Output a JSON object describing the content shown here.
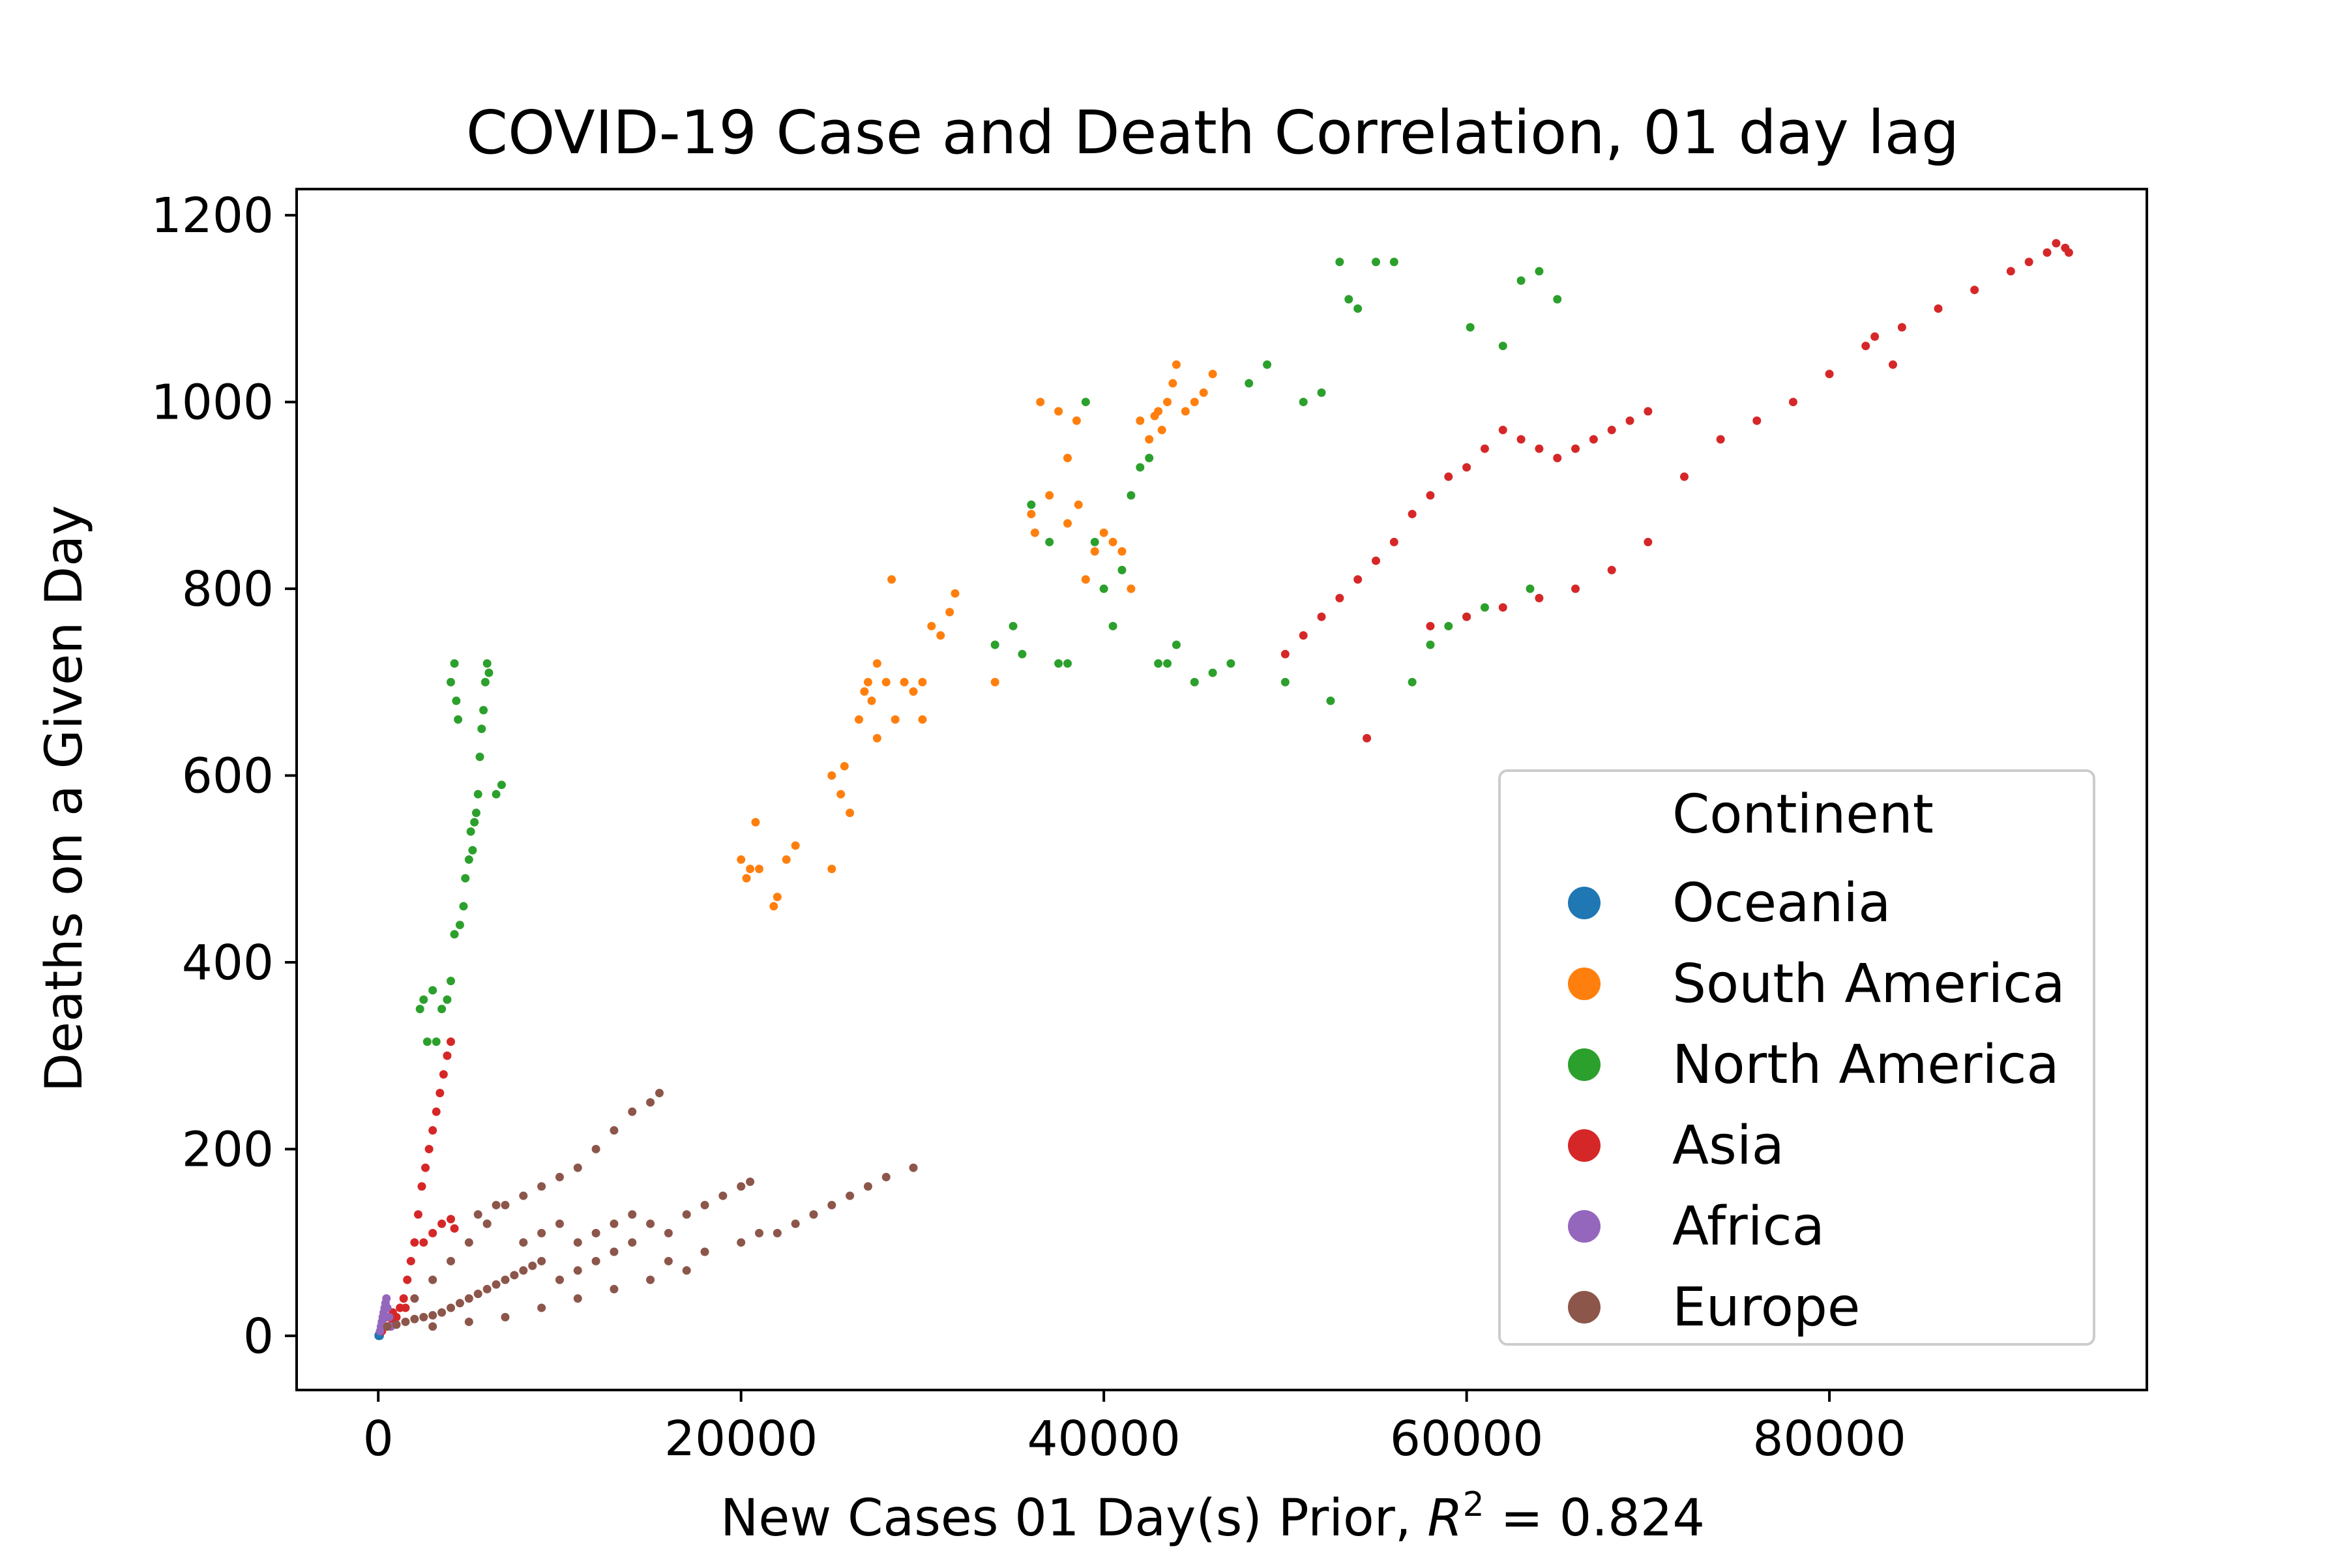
{
  "chart_data": {
    "type": "scatter",
    "title": "COVID-19 Case and Death Correlation, 01 day lag",
    "xlabel_prefix": "New Cases 01 Day(s) Prior, ",
    "xlabel_r": "R",
    "xlabel_exp": "2",
    "xlabel_suffix": " = 0.824",
    "ylabel": "Deaths on a Given Day",
    "xlim": [
      -4500,
      97500
    ],
    "ylim": [
      -58,
      1228
    ],
    "x_ticks": [
      0,
      20000,
      40000,
      60000,
      80000
    ],
    "x_tick_labels": [
      "0",
      "20000",
      "40000",
      "60000",
      "80000"
    ],
    "y_ticks": [
      0,
      200,
      400,
      600,
      800,
      1000,
      1200
    ],
    "y_tick_labels": [
      "0",
      "200",
      "400",
      "600",
      "800",
      "1000",
      "1200"
    ],
    "legend": {
      "title": "Continent",
      "position": "lower-right"
    },
    "series": [
      {
        "name": "Oceania",
        "color": "#1f77b4",
        "points": [
          [
            20,
            0
          ],
          [
            30,
            1
          ],
          [
            40,
            0
          ],
          [
            60,
            1
          ],
          [
            80,
            0
          ]
        ]
      },
      {
        "name": "South America",
        "color": "#ff7f0e",
        "points": [
          [
            20000,
            510
          ],
          [
            20500,
            500
          ],
          [
            20300,
            490
          ],
          [
            21000,
            500
          ],
          [
            20800,
            550
          ],
          [
            22000,
            470
          ],
          [
            21800,
            460
          ],
          [
            22500,
            510
          ],
          [
            23000,
            525
          ],
          [
            25000,
            500
          ],
          [
            25000,
            600
          ],
          [
            25500,
            580
          ],
          [
            25700,
            610
          ],
          [
            26000,
            560
          ],
          [
            26500,
            660
          ],
          [
            26800,
            690
          ],
          [
            27000,
            700
          ],
          [
            27200,
            680
          ],
          [
            27500,
            720
          ],
          [
            27500,
            640
          ],
          [
            28000,
            700
          ],
          [
            28300,
            810
          ],
          [
            28500,
            660
          ],
          [
            29000,
            700
          ],
          [
            29500,
            690
          ],
          [
            30000,
            700
          ],
          [
            30000,
            660
          ],
          [
            30500,
            760
          ],
          [
            31000,
            750
          ],
          [
            31500,
            775
          ],
          [
            31800,
            795
          ],
          [
            34000,
            700
          ],
          [
            36000,
            880
          ],
          [
            36200,
            860
          ],
          [
            36500,
            1000
          ],
          [
            37000,
            900
          ],
          [
            37500,
            990
          ],
          [
            38000,
            940
          ],
          [
            38000,
            870
          ],
          [
            38500,
            980
          ],
          [
            38600,
            890
          ],
          [
            39000,
            810
          ],
          [
            39500,
            840
          ],
          [
            40000,
            860
          ],
          [
            40500,
            850
          ],
          [
            41000,
            840
          ],
          [
            41500,
            800
          ],
          [
            42000,
            980
          ],
          [
            42500,
            960
          ],
          [
            43000,
            990
          ],
          [
            43500,
            1000
          ],
          [
            43800,
            1020
          ],
          [
            44000,
            1040
          ],
          [
            44500,
            990
          ],
          [
            45000,
            1000
          ],
          [
            45500,
            1010
          ],
          [
            46000,
            1030
          ],
          [
            43200,
            970
          ],
          [
            42800,
            985
          ]
        ]
      },
      {
        "name": "North America",
        "color": "#2ca02c",
        "points": [
          [
            2300,
            350
          ],
          [
            2500,
            360
          ],
          [
            2700,
            315
          ],
          [
            3000,
            370
          ],
          [
            3200,
            315
          ],
          [
            3500,
            350
          ],
          [
            3800,
            360
          ],
          [
            4000,
            380
          ],
          [
            4200,
            430
          ],
          [
            4500,
            440
          ],
          [
            4700,
            460
          ],
          [
            4800,
            490
          ],
          [
            5000,
            510
          ],
          [
            5100,
            540
          ],
          [
            5200,
            520
          ],
          [
            5300,
            550
          ],
          [
            5400,
            560
          ],
          [
            5500,
            580
          ],
          [
            5600,
            620
          ],
          [
            5700,
            650
          ],
          [
            5800,
            670
          ],
          [
            5900,
            700
          ],
          [
            6000,
            720
          ],
          [
            6100,
            710
          ],
          [
            4000,
            700
          ],
          [
            4200,
            720
          ],
          [
            4300,
            680
          ],
          [
            4400,
            660
          ],
          [
            6500,
            580
          ],
          [
            6800,
            590
          ],
          [
            36000,
            890
          ],
          [
            37000,
            850
          ],
          [
            38000,
            720
          ],
          [
            39000,
            1000
          ],
          [
            39500,
            850
          ],
          [
            40000,
            800
          ],
          [
            40500,
            760
          ],
          [
            41000,
            820
          ],
          [
            41500,
            900
          ],
          [
            42000,
            930
          ],
          [
            42500,
            940
          ],
          [
            43000,
            720
          ],
          [
            43500,
            720
          ],
          [
            44000,
            740
          ],
          [
            45000,
            700
          ],
          [
            46000,
            710
          ],
          [
            47000,
            720
          ],
          [
            48000,
            1020
          ],
          [
            49000,
            1040
          ],
          [
            50000,
            700
          ],
          [
            51000,
            1000
          ],
          [
            52000,
            1010
          ],
          [
            52500,
            680
          ],
          [
            53000,
            1150
          ],
          [
            53500,
            1110
          ],
          [
            54000,
            1100
          ],
          [
            55000,
            1150
          ],
          [
            56000,
            1150
          ],
          [
            57000,
            700
          ],
          [
            58000,
            740
          ],
          [
            59000,
            760
          ],
          [
            60000,
            770
          ],
          [
            61000,
            780
          ],
          [
            62000,
            1060
          ],
          [
            63000,
            1130
          ],
          [
            64000,
            1140
          ],
          [
            65000,
            1110
          ],
          [
            60200,
            1080
          ],
          [
            63500,
            800
          ],
          [
            34000,
            740
          ],
          [
            35000,
            760
          ],
          [
            35500,
            730
          ],
          [
            37500,
            720
          ]
        ]
      },
      {
        "name": "Asia",
        "color": "#d62728",
        "points": [
          [
            200,
            5
          ],
          [
            500,
            10
          ],
          [
            800,
            15
          ],
          [
            1000,
            20
          ],
          [
            1200,
            30
          ],
          [
            1400,
            40
          ],
          [
            1600,
            60
          ],
          [
            1800,
            80
          ],
          [
            2000,
            100
          ],
          [
            2200,
            130
          ],
          [
            2400,
            160
          ],
          [
            2600,
            180
          ],
          [
            2800,
            200
          ],
          [
            3000,
            220
          ],
          [
            3200,
            240
          ],
          [
            3400,
            260
          ],
          [
            3600,
            280
          ],
          [
            3800,
            300
          ],
          [
            4000,
            315
          ],
          [
            2500,
            100
          ],
          [
            3000,
            110
          ],
          [
            3500,
            120
          ],
          [
            4000,
            125
          ],
          [
            4200,
            115
          ],
          [
            1500,
            30
          ],
          [
            800,
            25
          ],
          [
            500,
            20
          ],
          [
            50000,
            730
          ],
          [
            51000,
            750
          ],
          [
            52000,
            770
          ],
          [
            53000,
            790
          ],
          [
            54000,
            810
          ],
          [
            54500,
            640
          ],
          [
            55000,
            830
          ],
          [
            56000,
            850
          ],
          [
            57000,
            880
          ],
          [
            58000,
            900
          ],
          [
            59000,
            920
          ],
          [
            60000,
            930
          ],
          [
            61000,
            950
          ],
          [
            62000,
            970
          ],
          [
            63000,
            960
          ],
          [
            64000,
            950
          ],
          [
            65000,
            940
          ],
          [
            66000,
            950
          ],
          [
            67000,
            960
          ],
          [
            68000,
            970
          ],
          [
            69000,
            980
          ],
          [
            70000,
            990
          ],
          [
            58000,
            760
          ],
          [
            60000,
            770
          ],
          [
            62000,
            780
          ],
          [
            64000,
            790
          ],
          [
            66000,
            800
          ],
          [
            68000,
            820
          ],
          [
            70000,
            850
          ],
          [
            72000,
            920
          ],
          [
            74000,
            960
          ],
          [
            76000,
            980
          ],
          [
            78000,
            1000
          ],
          [
            80000,
            1030
          ],
          [
            82000,
            1060
          ],
          [
            84000,
            1080
          ],
          [
            86000,
            1100
          ],
          [
            88000,
            1120
          ],
          [
            90000,
            1140
          ],
          [
            91000,
            1150
          ],
          [
            92000,
            1160
          ],
          [
            92500,
            1170
          ],
          [
            93000,
            1165
          ],
          [
            93200,
            1160
          ],
          [
            82500,
            1070
          ],
          [
            83500,
            1040
          ]
        ]
      },
      {
        "name": "Africa",
        "color": "#9467bd",
        "points": [
          [
            100,
            5
          ],
          [
            150,
            10
          ],
          [
            200,
            15
          ],
          [
            250,
            20
          ],
          [
            300,
            25
          ],
          [
            350,
            30
          ],
          [
            400,
            35
          ],
          [
            450,
            40
          ],
          [
            500,
            30
          ],
          [
            600,
            20
          ],
          [
            700,
            10
          ]
        ]
      },
      {
        "name": "Europe",
        "color": "#8c564b",
        "points": [
          [
            500,
            10
          ],
          [
            1000,
            12
          ],
          [
            1500,
            15
          ],
          [
            2000,
            18
          ],
          [
            2500,
            20
          ],
          [
            3000,
            22
          ],
          [
            3500,
            25
          ],
          [
            4000,
            30
          ],
          [
            4500,
            35
          ],
          [
            5000,
            40
          ],
          [
            5500,
            45
          ],
          [
            6000,
            50
          ],
          [
            6500,
            55
          ],
          [
            7000,
            60
          ],
          [
            7500,
            65
          ],
          [
            8000,
            70
          ],
          [
            8500,
            75
          ],
          [
            9000,
            80
          ],
          [
            2000,
            40
          ],
          [
            3000,
            60
          ],
          [
            4000,
            80
          ],
          [
            5000,
            100
          ],
          [
            6000,
            120
          ],
          [
            7000,
            140
          ],
          [
            8000,
            150
          ],
          [
            9000,
            160
          ],
          [
            10000,
            170
          ],
          [
            11000,
            180
          ],
          [
            12000,
            200
          ],
          [
            13000,
            220
          ],
          [
            14000,
            240
          ],
          [
            15000,
            250
          ],
          [
            15500,
            260
          ],
          [
            5500,
            130
          ],
          [
            6000,
            120
          ],
          [
            6500,
            140
          ],
          [
            8000,
            100
          ],
          [
            9000,
            110
          ],
          [
            10000,
            120
          ],
          [
            11000,
            100
          ],
          [
            12000,
            110
          ],
          [
            13000,
            120
          ],
          [
            14000,
            130
          ],
          [
            15000,
            120
          ],
          [
            16000,
            110
          ],
          [
            17000,
            130
          ],
          [
            18000,
            140
          ],
          [
            19000,
            150
          ],
          [
            20000,
            160
          ],
          [
            20500,
            165
          ],
          [
            10000,
            60
          ],
          [
            11000,
            70
          ],
          [
            12000,
            80
          ],
          [
            13000,
            90
          ],
          [
            14000,
            100
          ],
          [
            16000,
            80
          ],
          [
            18000,
            90
          ],
          [
            20000,
            100
          ],
          [
            21000,
            110
          ],
          [
            22000,
            110
          ],
          [
            23000,
            120
          ],
          [
            24000,
            130
          ],
          [
            25000,
            140
          ],
          [
            26000,
            150
          ],
          [
            27000,
            160
          ],
          [
            28000,
            170
          ],
          [
            29500,
            180
          ],
          [
            3000,
            10
          ],
          [
            5000,
            15
          ],
          [
            7000,
            20
          ],
          [
            9000,
            30
          ],
          [
            11000,
            40
          ],
          [
            13000,
            50
          ],
          [
            15000,
            60
          ],
          [
            17000,
            70
          ]
        ]
      }
    ]
  }
}
